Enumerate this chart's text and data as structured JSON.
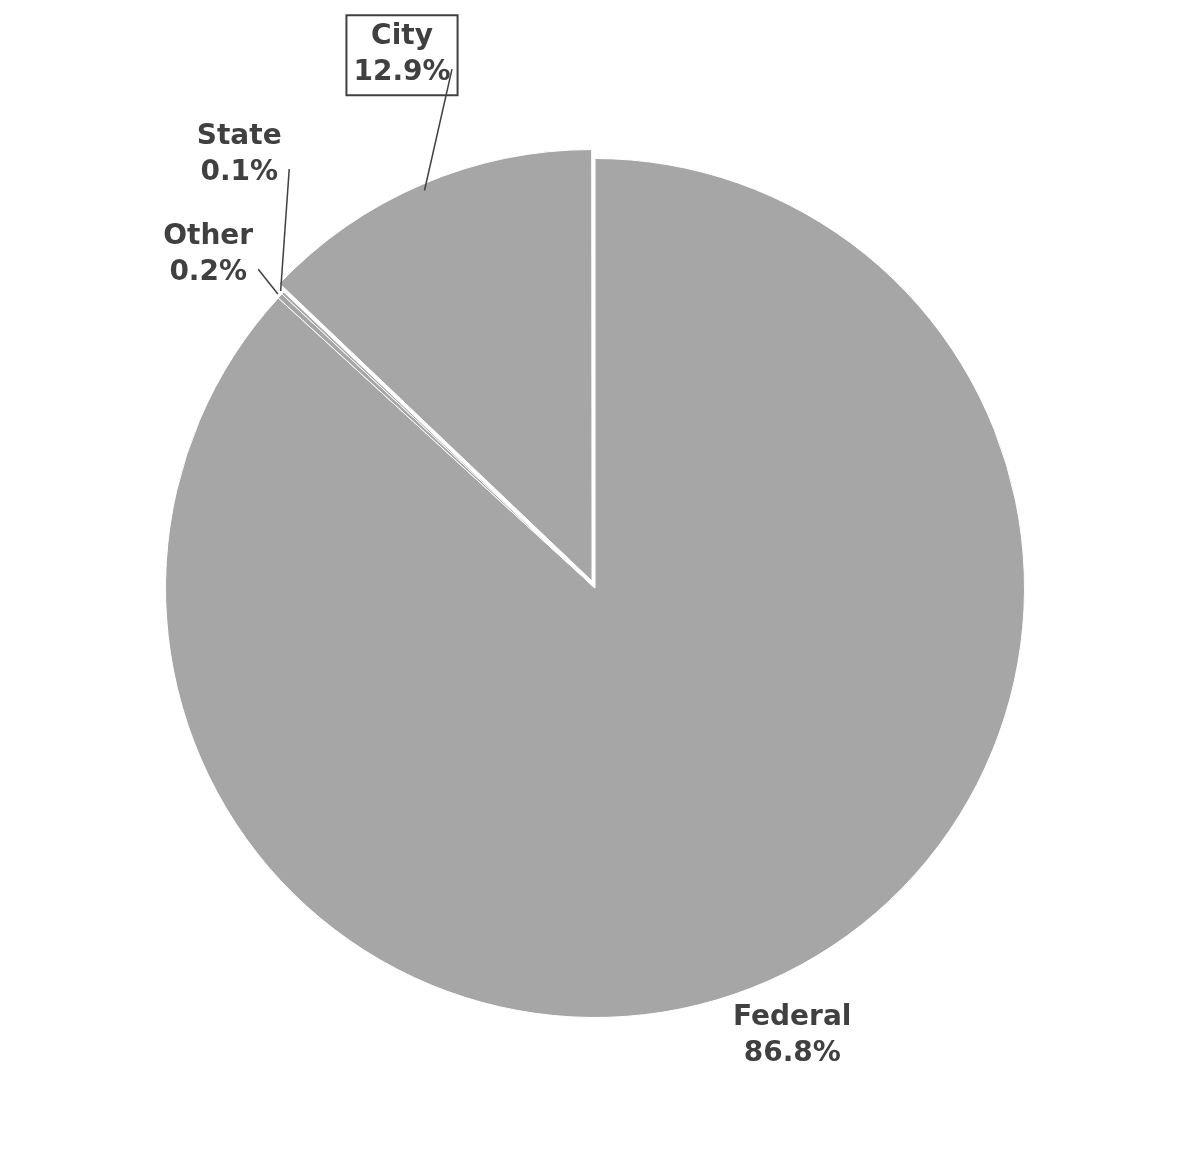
{
  "chart_data": {
    "type": "pie",
    "categories": [
      "Federal",
      "Other",
      "State",
      "City"
    ],
    "values": [
      86.8,
      0.2,
      0.1,
      12.9
    ],
    "value_labels": [
      "86.8%",
      "0.2%",
      "0.1%",
      "12.9%"
    ],
    "colors": [
      "#a6a6a6",
      "#a6a6a6",
      "#a6a6a6",
      "#a6a6a6"
    ],
    "legend": false
  }
}
